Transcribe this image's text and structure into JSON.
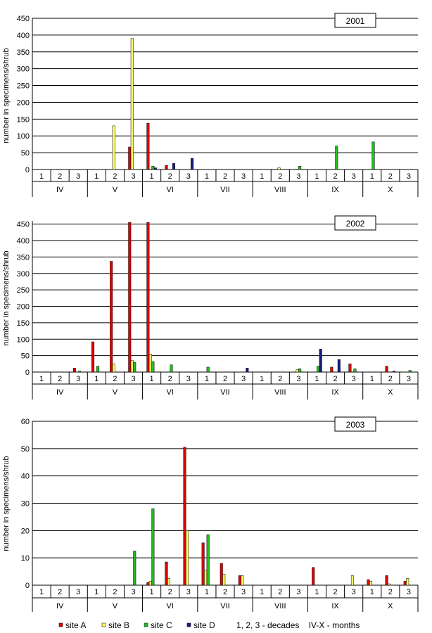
{
  "colors": {
    "site_a": "#e00000",
    "site_b": "#ffff66",
    "site_c": "#20c020",
    "site_d": "#1a1a80",
    "grid": "#000000"
  },
  "legend": {
    "items": [
      {
        "label": "site A",
        "color": "#e00000"
      },
      {
        "label": "site B",
        "color": "#ffff66"
      },
      {
        "label": "site C",
        "color": "#20c020"
      },
      {
        "label": "site D",
        "color": "#1a1a80"
      }
    ],
    "note": "1, 2, 3 - decades    IV-X - months"
  },
  "chart_data": [
    {
      "type": "bar",
      "title": "2001",
      "ylabel": "number in specimens/shrub",
      "ylim": [
        0,
        450
      ],
      "yticks": [
        0,
        50,
        100,
        150,
        200,
        250,
        300,
        350,
        400,
        450
      ],
      "months": [
        "IV",
        "V",
        "VI",
        "VII",
        "VIII",
        "IX",
        "X"
      ],
      "decades": [
        "1",
        "2",
        "3"
      ],
      "grid": true,
      "series": [
        {
          "name": "site A",
          "values": [
            0,
            0,
            0,
            0,
            0,
            67,
            138,
            12,
            0,
            0,
            0,
            0,
            0,
            0,
            0,
            0,
            0,
            0,
            0,
            0,
            0
          ]
        },
        {
          "name": "site B",
          "values": [
            0,
            0,
            0,
            0,
            130,
            390,
            0,
            0,
            0,
            0,
            0,
            0,
            0,
            5,
            0,
            0,
            0,
            0,
            0,
            0,
            0
          ]
        },
        {
          "name": "site C",
          "values": [
            0,
            0,
            0,
            0,
            0,
            0,
            10,
            0,
            0,
            0,
            0,
            0,
            0,
            0,
            10,
            0,
            70,
            0,
            82,
            0,
            0
          ]
        },
        {
          "name": "site D",
          "values": [
            0,
            0,
            0,
            0,
            0,
            0,
            5,
            18,
            33,
            0,
            0,
            0,
            0,
            0,
            0,
            0,
            0,
            0,
            0,
            0,
            0
          ]
        }
      ]
    },
    {
      "type": "bar",
      "title": "2002",
      "ylabel": "number in specimens/shrub",
      "ylim": [
        0,
        460
      ],
      "yticks": [
        0,
        50,
        100,
        150,
        200,
        250,
        300,
        350,
        400,
        450
      ],
      "months": [
        "IV",
        "V",
        "VI",
        "VII",
        "VIII",
        "IX",
        "X"
      ],
      "decades": [
        "1",
        "2",
        "3"
      ],
      "grid": true,
      "series": [
        {
          "name": "site A",
          "values": [
            0,
            0,
            12,
            92,
            337,
            455,
            455,
            0,
            0,
            0,
            0,
            0,
            0,
            0,
            0,
            0,
            15,
            25,
            0,
            18,
            0
          ]
        },
        {
          "name": "site B",
          "values": [
            0,
            0,
            0,
            0,
            25,
            35,
            55,
            0,
            0,
            0,
            0,
            0,
            0,
            0,
            7,
            0,
            0,
            0,
            0,
            0,
            0
          ]
        },
        {
          "name": "site C",
          "values": [
            0,
            0,
            3,
            18,
            0,
            30,
            32,
            22,
            0,
            15,
            0,
            0,
            0,
            0,
            10,
            18,
            0,
            10,
            0,
            0,
            5
          ]
        },
        {
          "name": "site D",
          "values": [
            0,
            0,
            0,
            0,
            0,
            0,
            0,
            0,
            0,
            0,
            0,
            12,
            0,
            0,
            0,
            70,
            38,
            0,
            0,
            3,
            0
          ]
        }
      ]
    },
    {
      "type": "bar",
      "title": "2003",
      "ylabel": "number in specimens/shrub",
      "ylim": [
        0,
        60
      ],
      "yticks": [
        0,
        10,
        20,
        30,
        40,
        50,
        60
      ],
      "months": [
        "IV",
        "V",
        "VI",
        "VII",
        "VIII",
        "IX",
        "X"
      ],
      "decades": [
        "1",
        "2",
        "3"
      ],
      "grid": true,
      "series": [
        {
          "name": "site A",
          "values": [
            0,
            0,
            0,
            0,
            0,
            0,
            1,
            8.5,
            50.5,
            15.5,
            8,
            3.5,
            0,
            0,
            0,
            6.5,
            0,
            0,
            2,
            3.5,
            1.5
          ]
        },
        {
          "name": "site B",
          "values": [
            0,
            0,
            0,
            0,
            0,
            0,
            1.5,
            2.5,
            20,
            5.5,
            4,
            3.5,
            0,
            0,
            0,
            0,
            0,
            3.5,
            1.5,
            0.5,
            2.5
          ]
        },
        {
          "name": "site C",
          "values": [
            0,
            0,
            0,
            0,
            0,
            12.5,
            28,
            0,
            0,
            18.5,
            0,
            0,
            0,
            0,
            0,
            0,
            0,
            0,
            0,
            0,
            0
          ]
        },
        {
          "name": "site D",
          "values": [
            0,
            0,
            0,
            0,
            0,
            0,
            0,
            0,
            0,
            0,
            0,
            0,
            0,
            0,
            0,
            0,
            0,
            0,
            0,
            0,
            0
          ]
        }
      ]
    }
  ]
}
